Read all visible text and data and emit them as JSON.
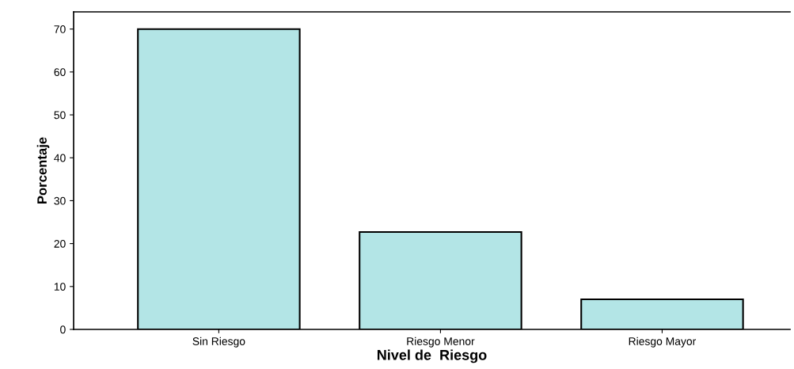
{
  "chart_data": {
    "type": "bar",
    "xlabel": "Nivel de  Riesgo",
    "ylabel": "Porcentaje",
    "categories": [
      "Sin Riesgo",
      "Riesgo Menor",
      "Riesgo Mayor"
    ],
    "values": [
      70,
      22.7,
      7.0
    ],
    "color": "#b3e5e6",
    "ylim": [
      0,
      74
    ],
    "yticks": [
      0,
      10,
      20,
      30,
      40,
      50,
      60,
      70
    ],
    "grid": false,
    "legend": false
  }
}
